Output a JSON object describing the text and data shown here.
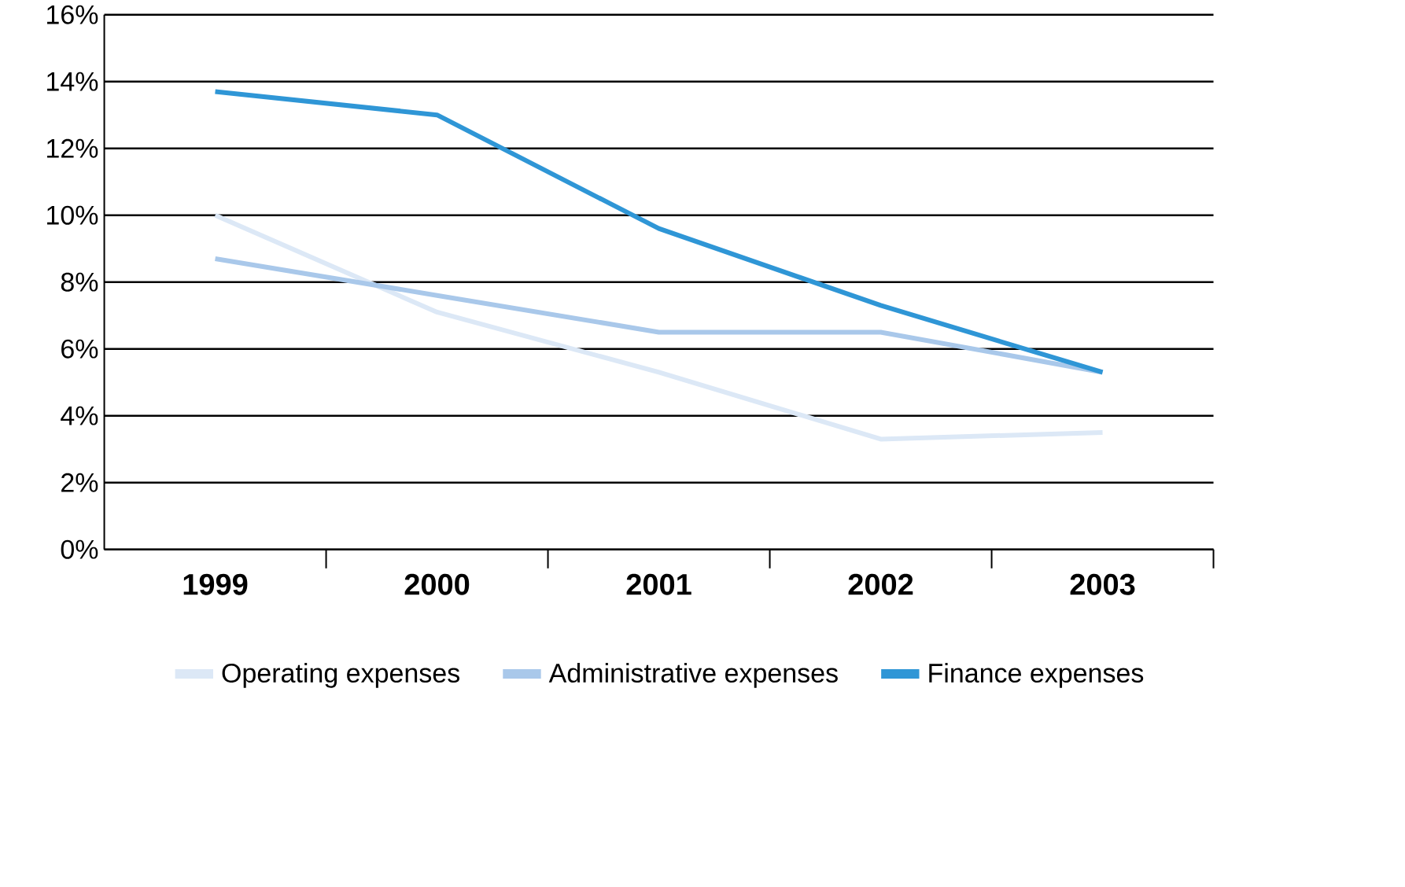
{
  "chart_data": {
    "type": "line",
    "categories": [
      "1999",
      "2000",
      "2001",
      "2002",
      "2003"
    ],
    "series": [
      {
        "name": "Operating expenses",
        "color": "#dce8f6",
        "values": [
          10.0,
          7.1,
          5.3,
          3.3,
          3.5
        ]
      },
      {
        "name": "Administrative expenses",
        "color": "#a9c8ea",
        "values": [
          8.7,
          7.6,
          6.5,
          6.5,
          5.3
        ]
      },
      {
        "name": "Finance expenses",
        "color": "#2f96d6",
        "values": [
          13.7,
          13.0,
          9.6,
          7.3,
          5.3
        ]
      }
    ],
    "ylim": [
      0,
      16
    ],
    "yticks": [
      {
        "value": 0,
        "label": "0%"
      },
      {
        "value": 2,
        "label": "2%"
      },
      {
        "value": 4,
        "label": "4%"
      },
      {
        "value": 6,
        "label": "6%"
      },
      {
        "value": 8,
        "label": "8%"
      },
      {
        "value": 10,
        "label": "10%"
      },
      {
        "value": 12,
        "label": "12%"
      },
      {
        "value": 14,
        "label": "14%"
      },
      {
        "value": 16,
        "label": "16%"
      }
    ],
    "grid": "y",
    "legend": "bottom",
    "marker": "none",
    "line_style": "solid"
  }
}
